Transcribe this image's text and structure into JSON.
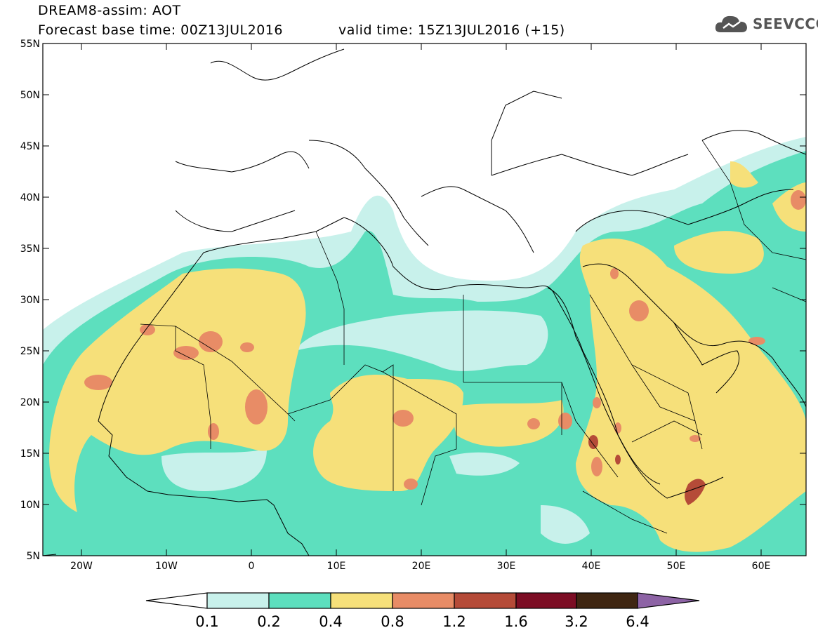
{
  "header": {
    "title_line1": "DREAM8-assim: AOT",
    "title_line2": "Forecast base time: 00Z13JUL2016",
    "valid_time": "valid time: 15Z13JUL2016 (+15)",
    "logo_text": "SEEVCCC",
    "logo_icon": "cloud-icon"
  },
  "axes": {
    "lat_labels": [
      "55N",
      "50N",
      "45N",
      "40N",
      "35N",
      "30N",
      "25N",
      "20N",
      "15N",
      "10N",
      "5N"
    ],
    "lon_labels": [
      "20W",
      "10W",
      "0",
      "10E",
      "20E",
      "30E",
      "40E",
      "50E",
      "60E"
    ]
  },
  "colorbar": {
    "labels": [
      "0.1",
      "0.2",
      "0.4",
      "0.8",
      "1.2",
      "1.6",
      "3.2",
      "6.4"
    ],
    "colors": {
      "below": "#ffffff",
      "c1": "#c8f1eb",
      "c2": "#5ddfbe",
      "c3": "#f6e07a",
      "c4": "#e88c66",
      "c5": "#b54b38",
      "c6": "#7c0d24",
      "c7": "#3f2612",
      "above": "#8d63a5"
    }
  }
}
